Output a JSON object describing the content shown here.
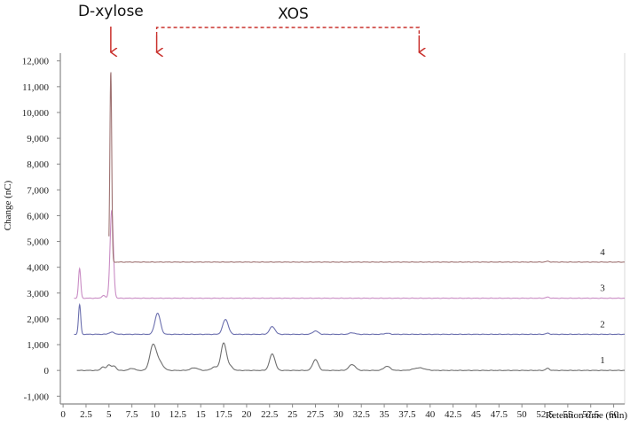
{
  "chart_data": {
    "type": "line",
    "title": "",
    "xlabel": "Retention time (min)",
    "ylabel": "Change (nC)",
    "xlim": [
      -0.3,
      61.2
    ],
    "ylim": [
      -1300,
      12300
    ],
    "x_ticks": [
      0,
      2.5,
      5,
      7.5,
      10,
      12.5,
      15,
      17.5,
      20,
      22.5,
      25,
      27.5,
      30,
      32.5,
      35,
      37.5,
      40,
      42.5,
      45,
      47.5,
      50,
      52.5,
      55,
      57.5,
      60
    ],
    "x_tick_labels": [
      "0",
      "2.5",
      "5",
      "7.5",
      "10",
      "12.5",
      "15",
      "17.5",
      "20",
      "22.5",
      "25",
      "27.5",
      "30",
      "32.5",
      "35",
      "37.5",
      "40",
      "42.5",
      "45",
      "47.5",
      "50",
      "52.5",
      "55",
      "57.5",
      "60"
    ],
    "y_ticks": [
      -1000,
      0,
      1000,
      2000,
      3000,
      4000,
      5000,
      6000,
      7000,
      8000,
      9000,
      10000,
      11000,
      12000
    ],
    "y_tick_labels": [
      "-1,000",
      "0",
      "1,000",
      "2,000",
      "3,000",
      "4,000",
      "5,000",
      "6,000",
      "7,000",
      "8,000",
      "9,000",
      "10,000",
      "11,000",
      "12,000"
    ],
    "annotations": {
      "dxylose": {
        "text": "D-xylose",
        "x": 5.2
      },
      "xos": {
        "text": "XOS",
        "x_start": 10.2,
        "x_end": 38.8
      }
    },
    "series": [
      {
        "name": "1",
        "color": "#6e6e6e",
        "baseline": 0,
        "x_start": 1.5,
        "x_end": 61.2,
        "peaks": [
          [
            4.3,
            130,
            0.2
          ],
          [
            5.0,
            220,
            0.25
          ],
          [
            5.6,
            160,
            0.2
          ],
          [
            7.5,
            80,
            0.3
          ],
          [
            9.8,
            950,
            0.35
          ],
          [
            10.5,
            300,
            0.4
          ],
          [
            14.3,
            100,
            0.4
          ],
          [
            16.5,
            130,
            0.35
          ],
          [
            17.5,
            1050,
            0.3
          ],
          [
            18.2,
            150,
            0.3
          ],
          [
            22.8,
            640,
            0.3
          ],
          [
            27.5,
            420,
            0.3
          ],
          [
            31.5,
            230,
            0.35
          ],
          [
            35.3,
            160,
            0.35
          ],
          [
            38.8,
            100,
            0.6
          ],
          [
            52.8,
            80,
            0.2
          ]
        ]
      },
      {
        "name": "2",
        "color": "#6b6fae",
        "baseline": 1400,
        "x_start": 1.2,
        "x_end": 61.2,
        "peaks": [
          [
            1.8,
            1150,
            0.12
          ],
          [
            5.3,
            80,
            0.3
          ],
          [
            10.3,
            820,
            0.3
          ],
          [
            17.7,
            580,
            0.3
          ],
          [
            22.8,
            300,
            0.3
          ],
          [
            27.5,
            130,
            0.3
          ],
          [
            31.5,
            60,
            0.3
          ],
          [
            35.3,
            40,
            0.3
          ],
          [
            52.8,
            40,
            0.2
          ]
        ]
      },
      {
        "name": "3",
        "color": "#c98cc4",
        "baseline": 2800,
        "x_start": 1.2,
        "x_end": 61.2,
        "peaks": [
          [
            1.8,
            1150,
            0.12
          ],
          [
            4.4,
            100,
            0.2
          ],
          [
            5.3,
            3400,
            0.18
          ],
          [
            52.8,
            40,
            0.2
          ]
        ]
      },
      {
        "name": "4",
        "color": "#9e7272",
        "baseline": 4200,
        "x_start": 5.0,
        "x_end": 61.2,
        "peaks": [
          [
            5.2,
            7400,
            0.1
          ],
          [
            52.8,
            30,
            0.2
          ]
        ]
      }
    ],
    "legend": "inline-right",
    "grid": false
  }
}
